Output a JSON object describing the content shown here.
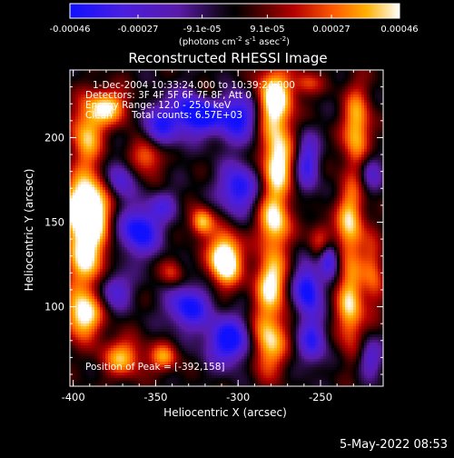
{
  "chart_data": {
    "type": "heatmap",
    "title": "Reconstructed RHESSI Image",
    "xlabel": "Heliocentric X (arcsec)",
    "ylabel": "Heliocentric Y (arcsec)",
    "xlim": [
      -402,
      -212
    ],
    "ylim": [
      53,
      240
    ],
    "x_ticks": [
      {
        "value": -400,
        "label": "-400"
      },
      {
        "value": -350,
        "label": "-350"
      },
      {
        "value": -300,
        "label": "-300"
      },
      {
        "value": -250,
        "label": "-250"
      }
    ],
    "y_ticks": [
      {
        "value": 100,
        "label": "100"
      },
      {
        "value": 150,
        "label": "150"
      },
      {
        "value": 200,
        "label": "200"
      }
    ],
    "colorbar": {
      "min": -0.00046,
      "max": 0.00046,
      "ticks": [
        {
          "value": -0.00046,
          "label": "-0.00046"
        },
        {
          "value": -0.00027,
          "label": "-0.00027"
        },
        {
          "value": -9.1e-05,
          "label": "-9.1e-05"
        },
        {
          "value": 9.1e-05,
          "label": "9.1e-05"
        },
        {
          "value": 0.00027,
          "label": "0.00027"
        },
        {
          "value": 0.00046,
          "label": "0.00046"
        }
      ],
      "unit_parts": [
        "(photons cm",
        "-2",
        " s",
        "-1",
        " asec",
        "-2",
        ")"
      ]
    },
    "annotations": [
      "1-Dec-2004 10:33:24.000 to 10:39:24.000",
      "Detectors: 3F 4F 5F 6F 7F 8F, Att 0",
      "Energy Range: 12.0 - 25.0 keV",
      "Clean",
      "Total counts: 6.57E+03"
    ],
    "peak_label": "Position of Peak = [-392,158]",
    "peak": [
      -392,
      158
    ],
    "grid": false,
    "colors": {
      "low": "#0000ff",
      "mid": "#000000",
      "high": "#ffffff",
      "background": "#000000"
    }
  },
  "footer": {
    "date": "5-May-2022 08:53"
  }
}
